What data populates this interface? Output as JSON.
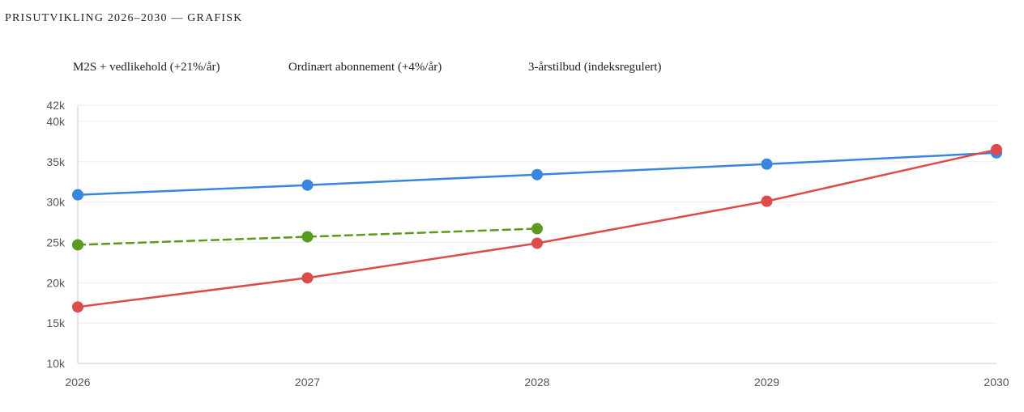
{
  "page": {
    "title": "PRISUTVIKLING 2026–2030 — GRAFISK"
  },
  "chart_data": {
    "type": "line",
    "title": "",
    "xlabel": "",
    "ylabel": "",
    "x": [
      "2026",
      "2027",
      "2028",
      "2029",
      "2030"
    ],
    "ylim": [
      10000,
      42000
    ],
    "y_ticks": [
      10000,
      15000,
      20000,
      25000,
      30000,
      35000,
      40000,
      42000
    ],
    "y_tick_labels": [
      "10k",
      "15k",
      "20k",
      "25k",
      "30k",
      "35k",
      "40k",
      "42k"
    ],
    "grid": true,
    "legend_placement": "top-left",
    "series": [
      {
        "name": "M2S + vedlikehold (+21%/år)",
        "color": "#dd4b4b",
        "dashed": false,
        "values": [
          17000,
          20600,
          24900,
          30100,
          36500
        ]
      },
      {
        "name": "Ordinært abonnement (+4%/år)",
        "color": "#3a86de",
        "dashed": false,
        "values": [
          30900,
          32100,
          33400,
          34700,
          36100
        ]
      },
      {
        "name": "3-årstilbud (indeksregulert)",
        "color": "#5a9a1e",
        "dashed": true,
        "values": [
          24700,
          25700,
          26700,
          null,
          null
        ]
      }
    ]
  }
}
